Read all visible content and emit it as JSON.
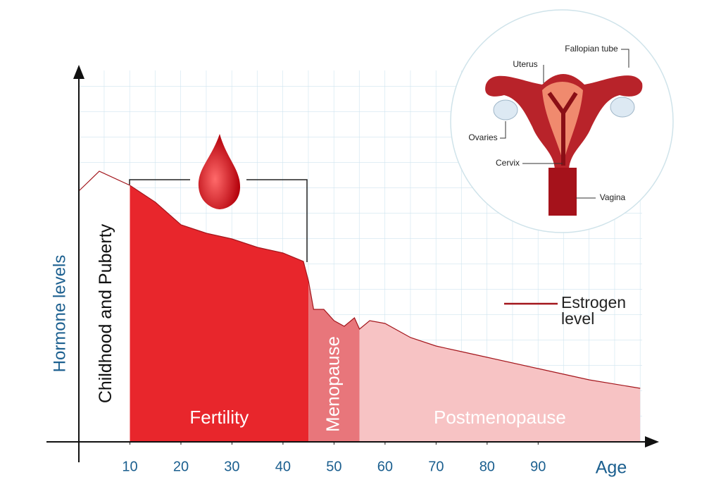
{
  "chart_data": {
    "type": "area",
    "x": [
      0,
      4,
      10,
      15,
      20,
      25,
      30,
      35,
      40,
      44,
      45,
      46,
      48,
      50,
      52,
      54,
      55,
      57,
      60,
      65,
      70,
      75,
      80,
      90,
      100,
      110
    ],
    "series": [
      {
        "name": "Estrogen level",
        "color": "#a3161c",
        "values": [
          89,
          96,
          91,
          85,
          77,
          74,
          72,
          69,
          67,
          64,
          57,
          47,
          47,
          43,
          41,
          44,
          40,
          43,
          42,
          37,
          34,
          32,
          30,
          26,
          22,
          19
        ]
      }
    ],
    "phases": [
      {
        "label": "Childhood and Puberty",
        "start": 0,
        "end": 10,
        "color": "#ffffff"
      },
      {
        "label": "Fertility",
        "start": 10,
        "end": 45,
        "color": "#e8262c"
      },
      {
        "label": "Menopause",
        "start": 45,
        "end": 55,
        "color": "#e8767b"
      },
      {
        "label": "Postmenopause",
        "start": 55,
        "end": 110,
        "color": "#f7c3c4"
      }
    ],
    "xlabel": "Age",
    "ylabel": "Hormone levels",
    "xlim": [
      0,
      113
    ],
    "ylim": [
      0,
      100
    ],
    "xticks": [
      10,
      20,
      30,
      40,
      50,
      60,
      70,
      80,
      90
    ]
  },
  "diagram": {
    "labels": [
      "Fallopian tube",
      "Uterus",
      "Ovaries",
      "Cervix",
      "Vagina"
    ]
  }
}
